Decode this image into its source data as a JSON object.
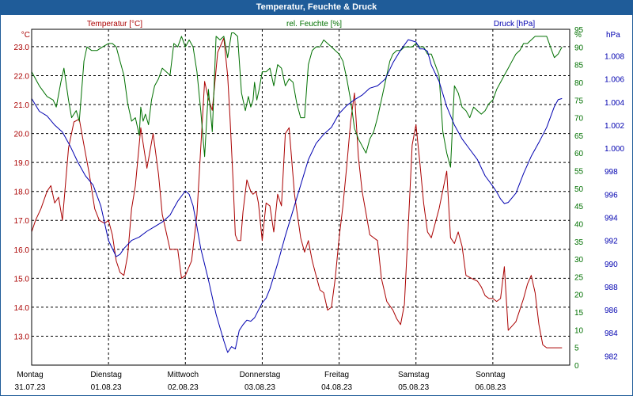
{
  "window": {
    "title": "Temperatur, Feuchte & Druck"
  },
  "colors": {
    "temperature": "#aa0000",
    "humidity": "#007000",
    "pressure": "#0000b0",
    "grid": "#000000",
    "titlebar": "#1f5c99"
  },
  "chart_data": {
    "type": "line",
    "title": "Temperatur, Feuchte & Druck",
    "xlabel": "",
    "x_range": [
      0,
      7
    ],
    "x_ticks": [
      {
        "x": 0,
        "day": "Montag",
        "date": "31.07.23"
      },
      {
        "x": 1,
        "day": "Dienstag",
        "date": "01.08.23"
      },
      {
        "x": 2,
        "day": "Mittwoch",
        "date": "02.08.23"
      },
      {
        "x": 3,
        "day": "Donnerstag",
        "date": "03.08.23"
      },
      {
        "x": 4,
        "day": "Freitag",
        "date": "04.08.23"
      },
      {
        "x": 5,
        "day": "Samstag",
        "date": "05.08.23"
      },
      {
        "x": 6,
        "day": "Sonntag",
        "date": "06.08.23"
      }
    ],
    "axes": {
      "temperature": {
        "unit_label": "°C",
        "series_label": "Temperatur [°C]",
        "ylim": [
          12.0,
          23.6
        ],
        "ticks": [
          "23.0",
          "22.0",
          "21.0",
          "20.0",
          "19.0",
          "18.0",
          "17.0",
          "16.0",
          "15.0",
          "14.0",
          "13.0"
        ]
      },
      "humidity": {
        "unit_label": "%",
        "series_label": "rel. Feuchte [%]",
        "ylim": [
          0,
          95
        ],
        "ticks": [
          "95",
          "90",
          "85",
          "80",
          "75",
          "70",
          "65",
          "60",
          "55",
          "50",
          "45",
          "40",
          "35",
          "30",
          "25",
          "20",
          "15",
          "10",
          "5",
          "0"
        ]
      },
      "pressure": {
        "unit_label": "hPa",
        "series_label": "Druck [hPa]",
        "ylim": [
          981.2,
          1010.3
        ],
        "ticks": [
          "1.008",
          "1.006",
          "1.004",
          "1.002",
          "1.000",
          "998",
          "996",
          "994",
          "992",
          "990",
          "988",
          "986",
          "984",
          "982"
        ]
      }
    },
    "series": [
      {
        "name": "Temperatur [°C]",
        "axis": "temperature",
        "x": [
          0,
          0.05,
          0.12,
          0.2,
          0.25,
          0.3,
          0.35,
          0.4,
          0.48,
          0.55,
          0.62,
          0.68,
          0.75,
          0.82,
          0.88,
          0.95,
          1.0,
          1.05,
          1.1,
          1.15,
          1.2,
          1.25,
          1.3,
          1.35,
          1.42,
          1.5,
          1.58,
          1.65,
          1.7,
          1.75,
          1.8,
          1.85,
          1.9,
          1.95,
          2.0,
          2.08,
          2.15,
          2.2,
          2.25,
          2.3,
          2.35,
          2.42,
          2.5,
          2.55,
          2.58,
          2.62,
          2.65,
          2.68,
          2.72,
          2.75,
          2.8,
          2.85,
          2.88,
          2.92,
          2.95,
          3.0,
          3.05,
          3.1,
          3.15,
          3.2,
          3.25,
          3.3,
          3.35,
          3.42,
          3.5,
          3.55,
          3.6,
          3.65,
          3.7,
          3.75,
          3.8,
          3.85,
          3.9,
          3.95,
          4.0,
          4.05,
          4.1,
          4.15,
          4.2,
          4.25,
          4.3,
          4.4,
          4.5,
          4.55,
          4.62,
          4.7,
          4.75,
          4.8,
          4.85,
          4.9,
          4.95,
          5.0,
          5.05,
          5.1,
          5.15,
          5.2,
          5.3,
          5.4,
          5.45,
          5.5,
          5.55,
          5.6,
          5.65,
          5.72,
          5.8,
          5.85,
          5.9,
          5.95,
          6.0,
          6.05,
          6.1,
          6.15,
          6.2,
          6.3,
          6.4,
          6.45,
          6.5,
          6.55,
          6.6,
          6.65,
          6.7,
          6.75,
          6.8,
          6.85,
          6.9
        ],
        "values": [
          16.6,
          17.0,
          17.4,
          18.0,
          18.2,
          17.6,
          17.8,
          17.0,
          19.5,
          20.4,
          20.5,
          19.6,
          18.6,
          17.4,
          17.0,
          16.9,
          17.0,
          16.5,
          15.6,
          15.2,
          15.1,
          15.8,
          17.4,
          18.2,
          20.2,
          18.8,
          20.0,
          18.6,
          17.2,
          16.6,
          16.0,
          16.0,
          16.0,
          15.0,
          15.1,
          15.6,
          17.2,
          19.5,
          21.8,
          21.2,
          20.8,
          22.8,
          23.3,
          22.0,
          20.6,
          18.4,
          16.5,
          16.3,
          16.3,
          17.3,
          18.4,
          18.0,
          17.9,
          18.0,
          17.6,
          16.3,
          17.6,
          17.5,
          16.6,
          17.9,
          17.5,
          20.0,
          20.2,
          17.9,
          16.4,
          15.9,
          16.3,
          15.6,
          15.1,
          14.6,
          14.5,
          13.9,
          14.0,
          15.0,
          16.4,
          17.5,
          18.9,
          20.4,
          21.4,
          19.2,
          18.0,
          16.5,
          16.3,
          15.0,
          14.2,
          13.9,
          13.6,
          13.4,
          14.1,
          16.8,
          19.6,
          20.3,
          19.0,
          17.6,
          16.6,
          16.4,
          17.4,
          18.7,
          16.4,
          16.2,
          16.6,
          16.1,
          15.1,
          15.0,
          14.9,
          14.7,
          14.4,
          14.3,
          14.3,
          14.2,
          14.3,
          15.4,
          13.2,
          13.5,
          14.3,
          14.8,
          15.1,
          14.5,
          13.4,
          12.7,
          12.6,
          12.6,
          12.6,
          12.6,
          12.6
        ]
      },
      {
        "name": "rel. Feuchte [%]",
        "axis": "humidity",
        "x": [
          0,
          0.1,
          0.2,
          0.28,
          0.32,
          0.38,
          0.42,
          0.48,
          0.52,
          0.58,
          0.62,
          0.68,
          0.72,
          0.78,
          0.85,
          0.92,
          1.0,
          1.05,
          1.1,
          1.15,
          1.2,
          1.25,
          1.3,
          1.35,
          1.4,
          1.42,
          1.45,
          1.48,
          1.52,
          1.56,
          1.6,
          1.65,
          1.7,
          1.8,
          1.85,
          1.9,
          1.95,
          2.0,
          2.05,
          2.1,
          2.15,
          2.2,
          2.25,
          2.3,
          2.35,
          2.4,
          2.45,
          2.5,
          2.55,
          2.6,
          2.63,
          2.68,
          2.73,
          2.78,
          2.82,
          2.85,
          2.88,
          2.9,
          2.93,
          2.96,
          3.0,
          3.05,
          3.1,
          3.15,
          3.2,
          3.25,
          3.3,
          3.35,
          3.4,
          3.45,
          3.5,
          3.55,
          3.6,
          3.65,
          3.7,
          3.75,
          3.8,
          3.85,
          3.9,
          3.95,
          4.0,
          4.05,
          4.1,
          4.15,
          4.2,
          4.25,
          4.3,
          4.35,
          4.4,
          4.45,
          4.5,
          4.55,
          4.58,
          4.62,
          4.66,
          4.7,
          4.75,
          4.8,
          4.85,
          4.9,
          4.95,
          5.0,
          5.05,
          5.1,
          5.15,
          5.2,
          5.25,
          5.3,
          5.35,
          5.4,
          5.45,
          5.5,
          5.55,
          5.6,
          5.65,
          5.7,
          5.75,
          5.8,
          5.85,
          5.9,
          5.95,
          6.0,
          6.05,
          6.1,
          6.15,
          6.2,
          6.25,
          6.3,
          6.35,
          6.4,
          6.45,
          6.5,
          6.55,
          6.6,
          6.65,
          6.7,
          6.75,
          6.8,
          6.85,
          6.9
        ],
        "values": [
          83,
          79,
          76,
          75,
          73,
          80,
          84,
          75,
          70,
          72,
          69,
          86,
          90,
          89,
          89,
          90,
          91,
          91,
          90,
          86,
          82,
          74,
          69,
          70,
          65,
          73,
          69,
          71,
          68,
          75,
          79,
          81,
          84,
          82,
          91,
          90,
          93,
          90,
          92,
          90,
          83,
          72,
          59,
          78,
          66,
          93,
          92,
          93,
          87,
          94,
          94,
          93,
          77,
          72,
          76,
          73,
          75,
          80,
          75,
          78,
          83,
          83,
          84,
          79,
          85,
          84,
          79,
          81,
          80,
          74,
          70,
          70,
          85,
          89,
          90,
          90,
          92,
          91,
          90,
          89,
          88,
          86,
          81,
          75,
          67,
          64,
          62,
          60,
          64,
          66,
          70,
          75,
          78,
          82,
          86,
          88,
          89,
          89,
          90,
          90,
          90,
          91,
          90,
          90,
          88,
          88,
          85,
          82,
          66,
          60,
          56,
          79,
          77,
          73,
          72,
          70,
          73,
          72,
          71,
          72,
          74,
          75,
          78,
          80,
          82,
          84,
          86,
          88,
          89,
          91,
          91,
          92,
          93,
          93,
          93,
          93,
          90,
          87,
          88,
          90
        ],
        "note": "values read from right-hand % axis (0–95)"
      },
      {
        "name": "Druck [hPa]",
        "axis": "pressure",
        "x": [
          0,
          0.1,
          0.2,
          0.3,
          0.4,
          0.5,
          0.6,
          0.7,
          0.8,
          0.9,
          1.0,
          1.1,
          1.15,
          1.2,
          1.3,
          1.4,
          1.5,
          1.6,
          1.7,
          1.8,
          1.85,
          1.9,
          2.0,
          2.05,
          2.1,
          2.15,
          2.2,
          2.3,
          2.4,
          2.5,
          2.55,
          2.6,
          2.65,
          2.7,
          2.75,
          2.8,
          2.85,
          2.9,
          3.0,
          3.05,
          3.1,
          3.2,
          3.3,
          3.4,
          3.5,
          3.6,
          3.7,
          3.8,
          3.9,
          4.0,
          4.1,
          4.2,
          4.3,
          4.4,
          4.5,
          4.6,
          4.7,
          4.8,
          4.9,
          5.0,
          5.05,
          5.1,
          5.15,
          5.2,
          5.3,
          5.4,
          5.5,
          5.6,
          5.7,
          5.8,
          5.9,
          6.0,
          6.05,
          6.1,
          6.15,
          6.2,
          6.3,
          6.4,
          6.5,
          6.6,
          6.7,
          6.8,
          6.85,
          6.9
        ],
        "values": [
          1004.3,
          1003.2,
          1002.8,
          1002.0,
          1001.4,
          1000.2,
          998.8,
          997.6,
          996.8,
          995.0,
          992.0,
          990.6,
          990.8,
          991.3,
          992.0,
          992.3,
          992.8,
          993.2,
          993.6,
          994.2,
          994.8,
          995.4,
          996.3,
          996.0,
          995.0,
          993.2,
          991.3,
          988.6,
          985.6,
          983.3,
          982.3,
          982.8,
          982.6,
          984.2,
          984.7,
          985.1,
          985.0,
          985.3,
          986.6,
          987.0,
          987.8,
          990.0,
          992.4,
          994.6,
          996.8,
          999.0,
          1000.4,
          1001.2,
          1001.8,
          1003.0,
          1003.7,
          1004.2,
          1004.6,
          1005.2,
          1005.4,
          1006.0,
          1007.4,
          1008.5,
          1009.4,
          1009.2,
          1008.6,
          1008.6,
          1008.4,
          1007.2,
          1005.8,
          1003.6,
          1002.0,
          1000.8,
          999.9,
          999.0,
          997.6,
          996.7,
          996.2,
          995.6,
          995.2,
          995.3,
          996.1,
          997.8,
          999.3,
          1000.5,
          1001.8,
          1003.6,
          1004.2,
          1004.3
        ]
      }
    ]
  }
}
